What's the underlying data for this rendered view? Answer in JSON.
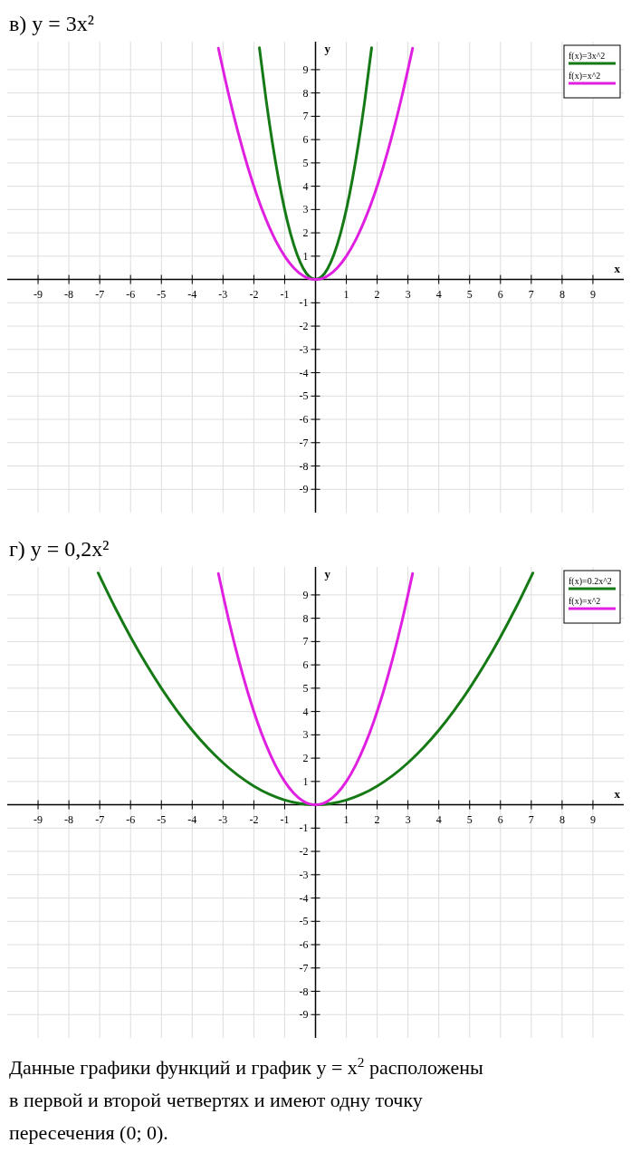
{
  "chart_data": [
    {
      "type": "line",
      "title": "в) y = 3x²",
      "xlabel": "x",
      "ylabel": "y",
      "xlim": [
        -10,
        10
      ],
      "ylim": [
        -10,
        10.2
      ],
      "xticks": [
        -9,
        -8,
        -7,
        -6,
        -5,
        -4,
        -3,
        -2,
        -1,
        1,
        2,
        3,
        4,
        5,
        6,
        7,
        8,
        9
      ],
      "yticks": [
        -9,
        -8,
        -7,
        -6,
        -5,
        -4,
        -3,
        -2,
        -1,
        1,
        2,
        3,
        4,
        5,
        6,
        7,
        8,
        9
      ],
      "grid": true,
      "legend": "top right",
      "line_style": "solid",
      "series": [
        {
          "name": "f(x)=3x^2",
          "color": "#157a15",
          "x": [
            -1.82,
            -1.6,
            -1.4,
            -1.2,
            -1,
            -0.8,
            -0.6,
            -0.4,
            -0.2,
            0,
            0.2,
            0.4,
            0.6,
            0.8,
            1,
            1.2,
            1.4,
            1.6,
            1.82
          ],
          "values": [
            9.94,
            7.68,
            5.88,
            4.32,
            3,
            1.92,
            1.08,
            0.48,
            0.12,
            0,
            0.12,
            0.48,
            1.08,
            1.92,
            3,
            4.32,
            5.88,
            7.68,
            9.94
          ]
        },
        {
          "name": "f(x)=x^2",
          "color": "#e020e0",
          "x": [
            -3.15,
            -2.8,
            -2.5,
            -2.2,
            -1.9,
            -1.6,
            -1.3,
            -1,
            -0.7,
            -0.4,
            0,
            0.4,
            0.7,
            1,
            1.3,
            1.6,
            1.9,
            2.2,
            2.5,
            2.8,
            3.15
          ],
          "values": [
            9.92,
            7.84,
            6.25,
            4.84,
            3.61,
            2.56,
            1.69,
            1,
            0.49,
            0.16,
            0,
            0.16,
            0.49,
            1,
            1.69,
            2.56,
            3.61,
            4.84,
            6.25,
            7.84,
            9.92
          ]
        }
      ]
    },
    {
      "type": "line",
      "title": "г) y = 0,2x²",
      "xlabel": "x",
      "ylabel": "y",
      "xlim": [
        -10,
        10
      ],
      "ylim": [
        -10,
        10.2
      ],
      "xticks": [
        -9,
        -8,
        -7,
        -6,
        -5,
        -4,
        -3,
        -2,
        -1,
        1,
        2,
        3,
        4,
        5,
        6,
        7,
        8,
        9
      ],
      "yticks": [
        -9,
        -8,
        -7,
        -6,
        -5,
        -4,
        -3,
        -2,
        -1,
        1,
        2,
        3,
        4,
        5,
        6,
        7,
        8,
        9
      ],
      "grid": true,
      "legend": "top right",
      "line_style": "solid",
      "annotations": [
        "Данные графики функций и график y = x$^{2}$ расположены в первой и второй четвертях и имеют одну точку пересечения (0; 0)."
      ],
      "series": [
        {
          "name": "f(x)=0.2x^2",
          "color": "#157a15",
          "x": [
            -7.05,
            -6.5,
            -6,
            -5.5,
            -5,
            -4.5,
            -4,
            -3.5,
            -3,
            -2.5,
            -2,
            -1.5,
            -1,
            -0.5,
            0,
            0.5,
            1,
            1.5,
            2,
            2.5,
            3,
            3.5,
            4,
            4.5,
            5,
            5.5,
            6,
            6.5,
            7.05
          ],
          "values": [
            9.94,
            8.45,
            7.2,
            6.05,
            5,
            4.05,
            3.2,
            2.45,
            1.8,
            1.25,
            0.8,
            0.45,
            0.2,
            0.05,
            0,
            0.05,
            0.2,
            0.45,
            0.8,
            1.25,
            1.8,
            2.45,
            3.2,
            4.05,
            5,
            6.05,
            7.2,
            8.45,
            9.94
          ]
        },
        {
          "name": "f(x)=x^2",
          "color": "#e020e0",
          "x": [
            -3.15,
            -2.8,
            -2.5,
            -2.2,
            -1.9,
            -1.6,
            -1.3,
            -1,
            -0.7,
            -0.4,
            0,
            0.4,
            0.7,
            1,
            1.3,
            1.6,
            1.9,
            2.2,
            2.5,
            2.8,
            3.15
          ],
          "values": [
            9.92,
            7.84,
            6.25,
            4.84,
            3.61,
            2.56,
            1.69,
            1,
            0.49,
            0.16,
            0,
            0.16,
            0.49,
            1,
            1.69,
            2.56,
            3.61,
            4.84,
            6.25,
            7.84,
            9.92
          ]
        }
      ]
    }
  ]
}
